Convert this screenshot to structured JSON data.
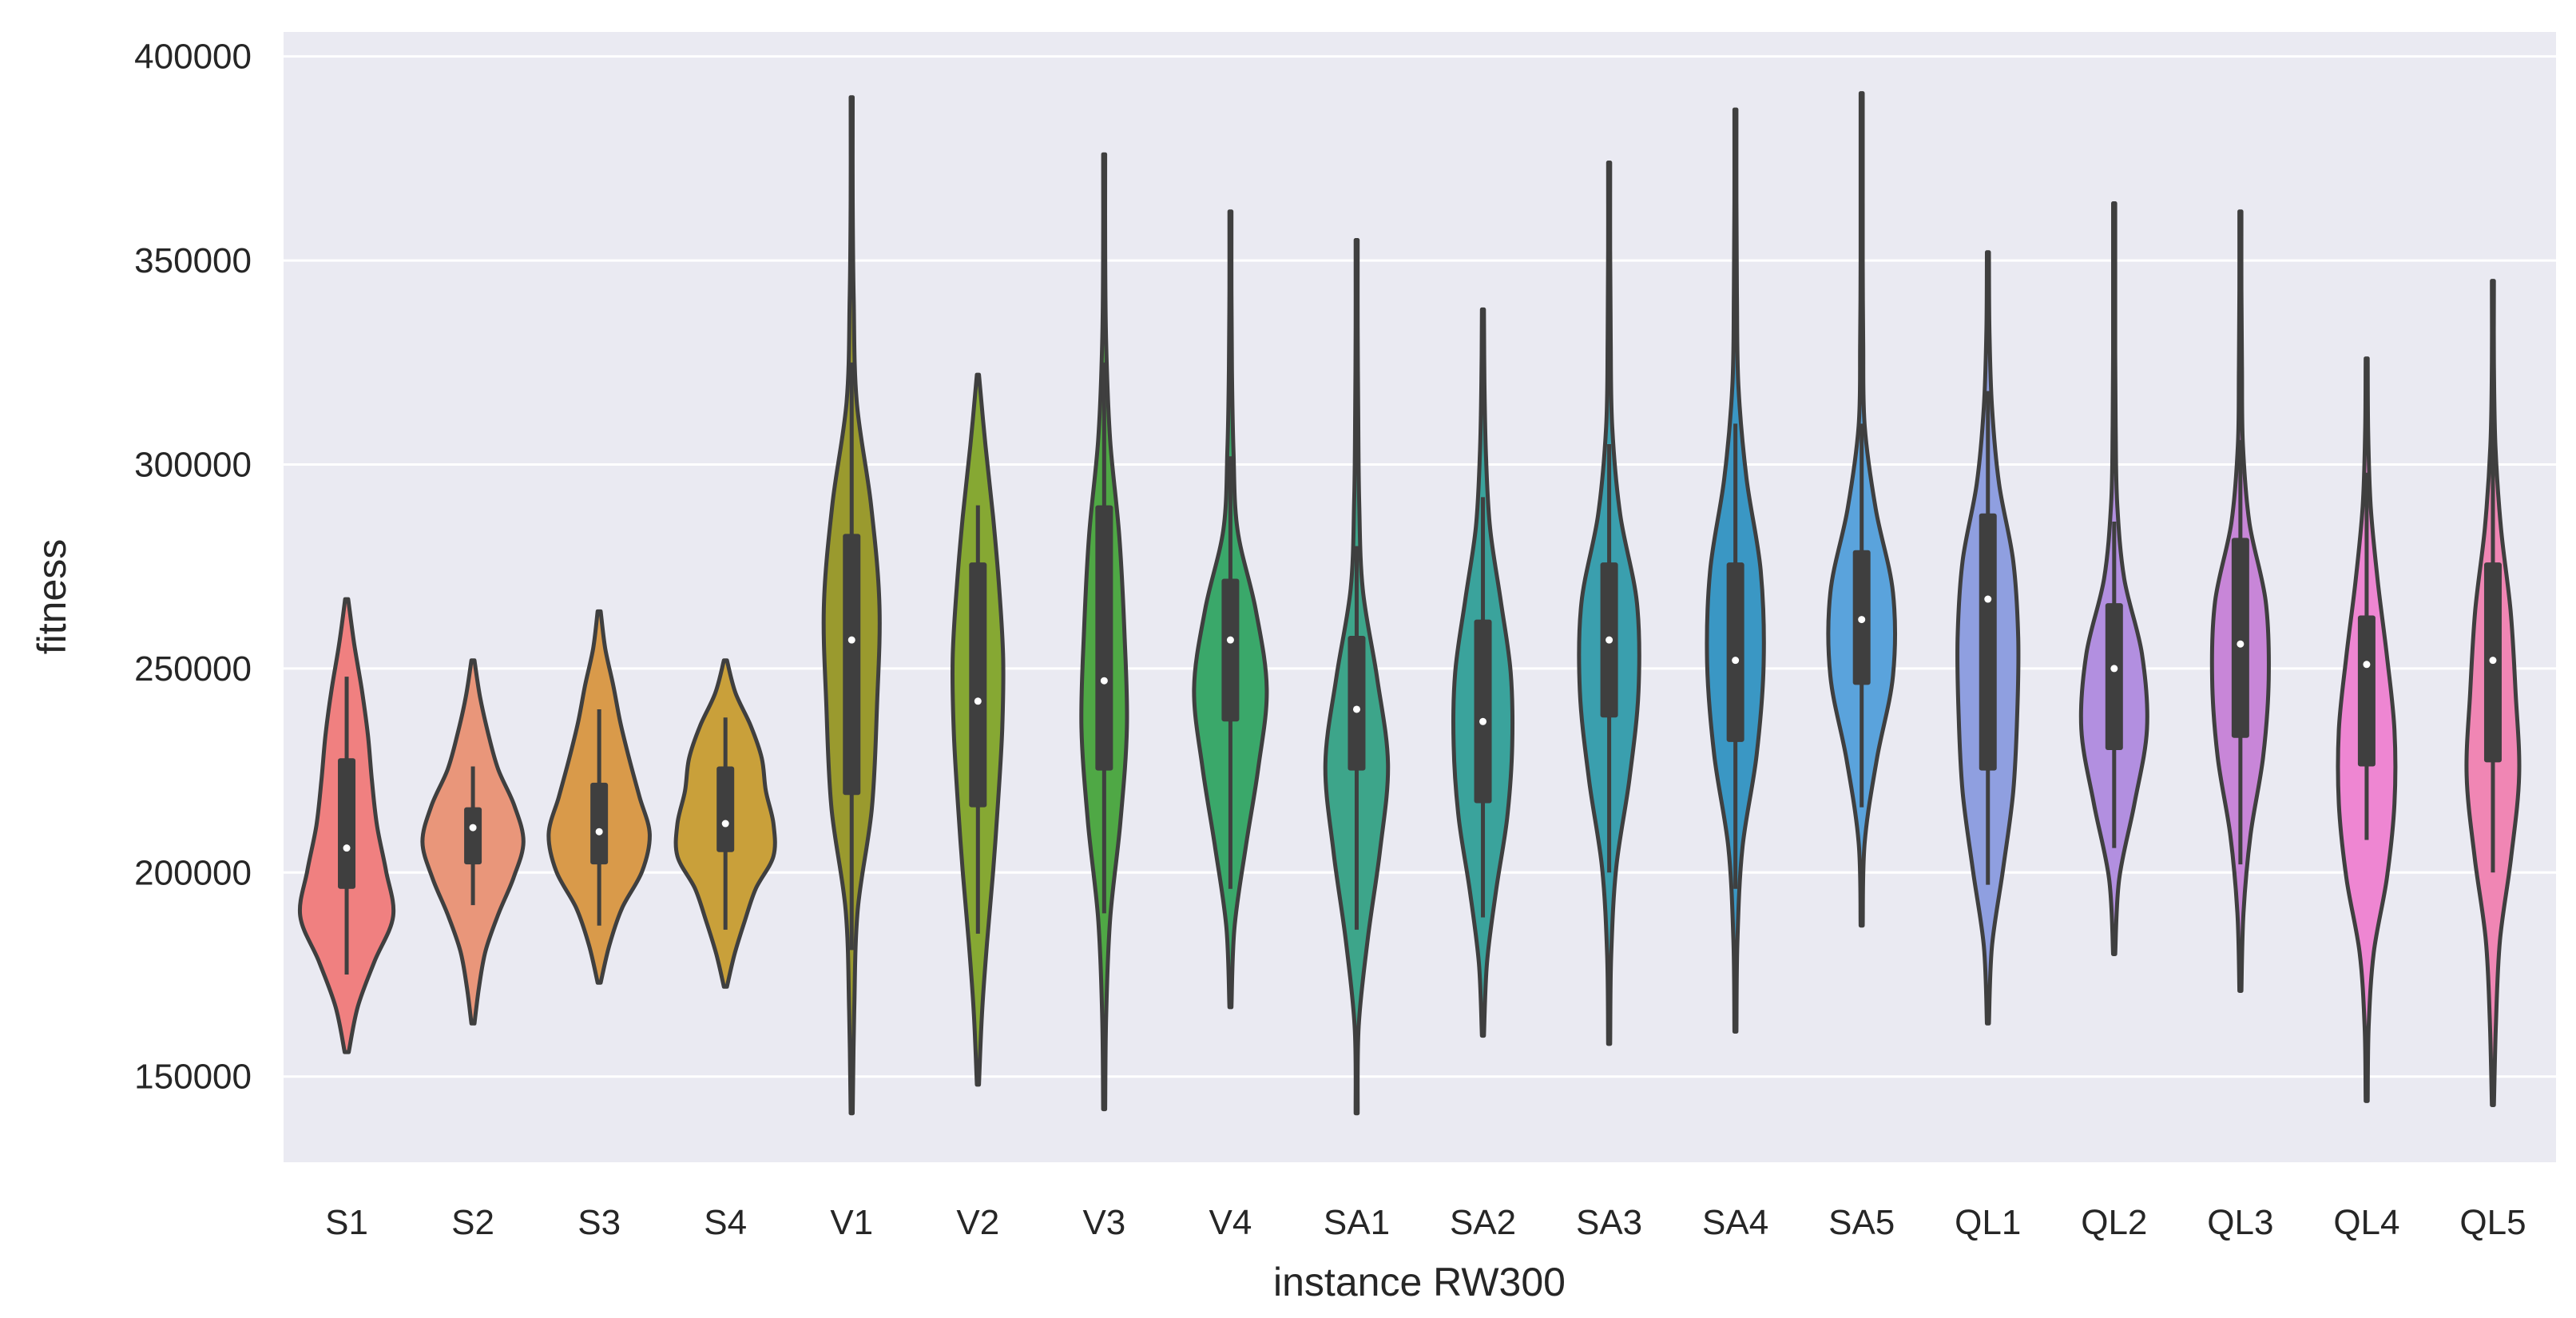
{
  "chart_data": {
    "type": "violin",
    "title": "",
    "xlabel": "instance RW300",
    "ylabel": "fitness",
    "ylim": [
      129000,
      406000
    ],
    "yticks": [
      150000,
      200000,
      250000,
      300000,
      350000,
      400000
    ],
    "grid": true,
    "colors": {
      "background": "#eaeaf2",
      "grid": "#ffffff",
      "edge": "#3f3f3f",
      "median": "#ffffff"
    },
    "categories": [
      "S1",
      "S2",
      "S3",
      "S4",
      "V1",
      "V2",
      "V3",
      "V4",
      "SA1",
      "SA2",
      "SA3",
      "SA4",
      "SA5",
      "QL1",
      "QL2",
      "QL3",
      "QL4",
      "QL5"
    ],
    "series": [
      {
        "name": "S1",
        "color": "#f08080",
        "min": 156000,
        "q1": 196000,
        "median": 206000,
        "q3": 228000,
        "max": 267000,
        "wl": 175000,
        "wh": 248000,
        "dens": [
          [
            0,
            0.04
          ],
          [
            0.1,
            0.22
          ],
          [
            0.2,
            0.55
          ],
          [
            0.3,
            0.92
          ],
          [
            0.4,
            0.78
          ],
          [
            0.5,
            0.6
          ],
          [
            0.6,
            0.5
          ],
          [
            0.7,
            0.42
          ],
          [
            0.8,
            0.3
          ],
          [
            0.9,
            0.15
          ],
          [
            1,
            0.03
          ]
        ]
      },
      {
        "name": "S2",
        "color": "#e9967a",
        "min": 163000,
        "q1": 202000,
        "median": 211000,
        "q3": 216000,
        "max": 252000,
        "wl": 192000,
        "wh": 226000,
        "dens": [
          [
            0,
            0.03
          ],
          [
            0.1,
            0.12
          ],
          [
            0.2,
            0.25
          ],
          [
            0.3,
            0.5
          ],
          [
            0.4,
            0.8
          ],
          [
            0.5,
            1.0
          ],
          [
            0.6,
            0.82
          ],
          [
            0.7,
            0.5
          ],
          [
            0.8,
            0.3
          ],
          [
            0.9,
            0.14
          ],
          [
            1,
            0.03
          ]
        ]
      },
      {
        "name": "S3",
        "color": "#d99a4a",
        "min": 173000,
        "q1": 202000,
        "median": 210000,
        "q3": 222000,
        "max": 264000,
        "wl": 187000,
        "wh": 240000,
        "dens": [
          [
            0,
            0.03
          ],
          [
            0.1,
            0.2
          ],
          [
            0.2,
            0.45
          ],
          [
            0.3,
            0.85
          ],
          [
            0.4,
            1.0
          ],
          [
            0.5,
            0.8
          ],
          [
            0.6,
            0.6
          ],
          [
            0.7,
            0.42
          ],
          [
            0.8,
            0.28
          ],
          [
            0.9,
            0.12
          ],
          [
            1,
            0.03
          ]
        ]
      },
      {
        "name": "S4",
        "color": "#c9a03a",
        "min": 172000,
        "q1": 205000,
        "median": 212000,
        "q3": 226000,
        "max": 252000,
        "wl": 186000,
        "wh": 238000,
        "dens": [
          [
            0,
            0.03
          ],
          [
            0.1,
            0.18
          ],
          [
            0.2,
            0.38
          ],
          [
            0.3,
            0.6
          ],
          [
            0.4,
            0.95
          ],
          [
            0.5,
            0.95
          ],
          [
            0.6,
            0.8
          ],
          [
            0.7,
            0.72
          ],
          [
            0.8,
            0.5
          ],
          [
            0.9,
            0.2
          ],
          [
            1,
            0.03
          ]
        ]
      },
      {
        "name": "V1",
        "color": "#9a9a2e",
        "min": 141000,
        "q1": 219000,
        "median": 257000,
        "q3": 283000,
        "max": 390000,
        "wl": 181000,
        "wh": 325000,
        "dens": [
          [
            0,
            0.02
          ],
          [
            0.1,
            0.05
          ],
          [
            0.2,
            0.12
          ],
          [
            0.3,
            0.4
          ],
          [
            0.4,
            0.5
          ],
          [
            0.5,
            0.55
          ],
          [
            0.6,
            0.38
          ],
          [
            0.7,
            0.1
          ],
          [
            0.8,
            0.04
          ],
          [
            0.9,
            0.02
          ],
          [
            1,
            0.02
          ]
        ]
      },
      {
        "name": "V2",
        "color": "#86a833",
        "min": 148000,
        "q1": 216000,
        "median": 242000,
        "q3": 276000,
        "max": 322000,
        "wl": 185000,
        "wh": 290000,
        "dens": [
          [
            0,
            0.02
          ],
          [
            0.1,
            0.08
          ],
          [
            0.2,
            0.18
          ],
          [
            0.3,
            0.3
          ],
          [
            0.4,
            0.4
          ],
          [
            0.5,
            0.48
          ],
          [
            0.6,
            0.5
          ],
          [
            0.7,
            0.42
          ],
          [
            0.8,
            0.3
          ],
          [
            0.9,
            0.15
          ],
          [
            1,
            0.02
          ]
        ]
      },
      {
        "name": "V3",
        "color": "#4fa845",
        "min": 142000,
        "q1": 225000,
        "median": 247000,
        "q3": 290000,
        "max": 376000,
        "wl": 190000,
        "wh": 325000,
        "dens": [
          [
            0,
            0.02
          ],
          [
            0.1,
            0.04
          ],
          [
            0.2,
            0.12
          ],
          [
            0.3,
            0.32
          ],
          [
            0.4,
            0.45
          ],
          [
            0.5,
            0.4
          ],
          [
            0.6,
            0.3
          ],
          [
            0.7,
            0.12
          ],
          [
            0.8,
            0.04
          ],
          [
            0.9,
            0.02
          ],
          [
            1,
            0.02
          ]
        ]
      },
      {
        "name": "V4",
        "color": "#3aa86a",
        "min": 167000,
        "q1": 237000,
        "median": 257000,
        "q3": 272000,
        "max": 362000,
        "wl": 196000,
        "wh": 302000,
        "dens": [
          [
            0,
            0.02
          ],
          [
            0.1,
            0.08
          ],
          [
            0.2,
            0.3
          ],
          [
            0.3,
            0.55
          ],
          [
            0.4,
            0.72
          ],
          [
            0.5,
            0.5
          ],
          [
            0.6,
            0.14
          ],
          [
            0.7,
            0.06
          ],
          [
            0.8,
            0.03
          ],
          [
            0.9,
            0.02
          ],
          [
            1,
            0.02
          ]
        ]
      },
      {
        "name": "SA1",
        "color": "#3da58a",
        "min": 141000,
        "q1": 225000,
        "median": 240000,
        "q3": 258000,
        "max": 355000,
        "wl": 186000,
        "wh": 280000,
        "dens": [
          [
            0,
            0.02
          ],
          [
            0.1,
            0.04
          ],
          [
            0.2,
            0.22
          ],
          [
            0.3,
            0.46
          ],
          [
            0.4,
            0.62
          ],
          [
            0.5,
            0.4
          ],
          [
            0.6,
            0.12
          ],
          [
            0.7,
            0.05
          ],
          [
            0.8,
            0.03
          ],
          [
            0.9,
            0.02
          ],
          [
            1,
            0.02
          ]
        ]
      },
      {
        "name": "SA2",
        "color": "#3aa39c",
        "min": 160000,
        "q1": 217000,
        "median": 237000,
        "q3": 262000,
        "max": 338000,
        "wl": 189000,
        "wh": 292000,
        "dens": [
          [
            0,
            0.02
          ],
          [
            0.1,
            0.08
          ],
          [
            0.2,
            0.26
          ],
          [
            0.3,
            0.48
          ],
          [
            0.4,
            0.58
          ],
          [
            0.5,
            0.55
          ],
          [
            0.6,
            0.35
          ],
          [
            0.7,
            0.14
          ],
          [
            0.8,
            0.06
          ],
          [
            0.9,
            0.03
          ],
          [
            1,
            0.02
          ]
        ]
      },
      {
        "name": "SA3",
        "color": "#3a9fae",
        "min": 158000,
        "q1": 238000,
        "median": 257000,
        "q3": 276000,
        "max": 374000,
        "wl": 200000,
        "wh": 305000,
        "dens": [
          [
            0,
            0.02
          ],
          [
            0.1,
            0.04
          ],
          [
            0.2,
            0.14
          ],
          [
            0.3,
            0.4
          ],
          [
            0.4,
            0.58
          ],
          [
            0.5,
            0.55
          ],
          [
            0.6,
            0.22
          ],
          [
            0.7,
            0.06
          ],
          [
            0.8,
            0.03
          ],
          [
            0.9,
            0.02
          ],
          [
            1,
            0.02
          ]
        ]
      },
      {
        "name": "SA4",
        "color": "#3a97c4",
        "min": 161000,
        "q1": 232000,
        "median": 252000,
        "q3": 276000,
        "max": 387000,
        "wl": 196000,
        "wh": 310000,
        "dens": [
          [
            0,
            0.02
          ],
          [
            0.1,
            0.04
          ],
          [
            0.2,
            0.14
          ],
          [
            0.3,
            0.42
          ],
          [
            0.4,
            0.56
          ],
          [
            0.5,
            0.5
          ],
          [
            0.6,
            0.22
          ],
          [
            0.7,
            0.06
          ],
          [
            0.8,
            0.03
          ],
          [
            0.9,
            0.02
          ],
          [
            1,
            0.02
          ]
        ]
      },
      {
        "name": "SA5",
        "color": "#5aa3dc",
        "min": 187000,
        "q1": 246000,
        "median": 262000,
        "q3": 279000,
        "max": 391000,
        "wl": 216000,
        "wh": 310000,
        "dens": [
          [
            0,
            0.02
          ],
          [
            0.1,
            0.06
          ],
          [
            0.2,
            0.3
          ],
          [
            0.3,
            0.62
          ],
          [
            0.4,
            0.62
          ],
          [
            0.5,
            0.28
          ],
          [
            0.6,
            0.06
          ],
          [
            0.7,
            0.03
          ],
          [
            0.8,
            0.02
          ],
          [
            0.9,
            0.02
          ],
          [
            1,
            0.02
          ]
        ]
      },
      {
        "name": "QL1",
        "color": "#8f9fe0",
        "min": 163000,
        "q1": 225000,
        "median": 267000,
        "q3": 288000,
        "max": 352000,
        "wl": 197000,
        "wh": 318000,
        "dens": [
          [
            0,
            0.02
          ],
          [
            0.1,
            0.08
          ],
          [
            0.2,
            0.3
          ],
          [
            0.3,
            0.5
          ],
          [
            0.4,
            0.58
          ],
          [
            0.5,
            0.6
          ],
          [
            0.6,
            0.5
          ],
          [
            0.7,
            0.22
          ],
          [
            0.8,
            0.08
          ],
          [
            0.9,
            0.03
          ],
          [
            1,
            0.02
          ]
        ]
      },
      {
        "name": "QL2",
        "color": "#b28fe0",
        "min": 180000,
        "q1": 230000,
        "median": 250000,
        "q3": 266000,
        "max": 364000,
        "wl": 206000,
        "wh": 286000,
        "dens": [
          [
            0,
            0.02
          ],
          [
            0.1,
            0.1
          ],
          [
            0.2,
            0.4
          ],
          [
            0.3,
            0.65
          ],
          [
            0.4,
            0.55
          ],
          [
            0.5,
            0.2
          ],
          [
            0.6,
            0.06
          ],
          [
            0.7,
            0.03
          ],
          [
            0.8,
            0.02
          ],
          [
            0.9,
            0.02
          ],
          [
            1,
            0.02
          ]
        ]
      },
      {
        "name": "QL3",
        "color": "#c886d8",
        "min": 171000,
        "q1": 233000,
        "median": 256000,
        "q3": 282000,
        "max": 362000,
        "wl": 202000,
        "wh": 306000,
        "dens": [
          [
            0,
            0.02
          ],
          [
            0.1,
            0.06
          ],
          [
            0.2,
            0.2
          ],
          [
            0.3,
            0.45
          ],
          [
            0.4,
            0.56
          ],
          [
            0.5,
            0.5
          ],
          [
            0.6,
            0.18
          ],
          [
            0.7,
            0.05
          ],
          [
            0.8,
            0.03
          ],
          [
            0.9,
            0.02
          ],
          [
            1,
            0.02
          ]
        ]
      },
      {
        "name": "QL4",
        "color": "#ee86d2",
        "min": 144000,
        "q1": 226000,
        "median": 251000,
        "q3": 263000,
        "max": 326000,
        "wl": 208000,
        "wh": 298000,
        "dens": [
          [
            0,
            0.02
          ],
          [
            0.1,
            0.04
          ],
          [
            0.2,
            0.14
          ],
          [
            0.3,
            0.4
          ],
          [
            0.4,
            0.55
          ],
          [
            0.5,
            0.55
          ],
          [
            0.6,
            0.4
          ],
          [
            0.7,
            0.22
          ],
          [
            0.8,
            0.08
          ],
          [
            0.9,
            0.03
          ],
          [
            1,
            0.02
          ]
        ]
      },
      {
        "name": "QL5",
        "color": "#f086b4",
        "min": 143000,
        "q1": 227000,
        "median": 252000,
        "q3": 276000,
        "max": 345000,
        "wl": 200000,
        "wh": 310000,
        "dens": [
          [
            0,
            0.02
          ],
          [
            0.1,
            0.06
          ],
          [
            0.2,
            0.14
          ],
          [
            0.3,
            0.36
          ],
          [
            0.4,
            0.52
          ],
          [
            0.5,
            0.45
          ],
          [
            0.6,
            0.35
          ],
          [
            0.7,
            0.16
          ],
          [
            0.8,
            0.05
          ],
          [
            0.9,
            0.02
          ],
          [
            1,
            0.02
          ]
        ]
      }
    ]
  }
}
